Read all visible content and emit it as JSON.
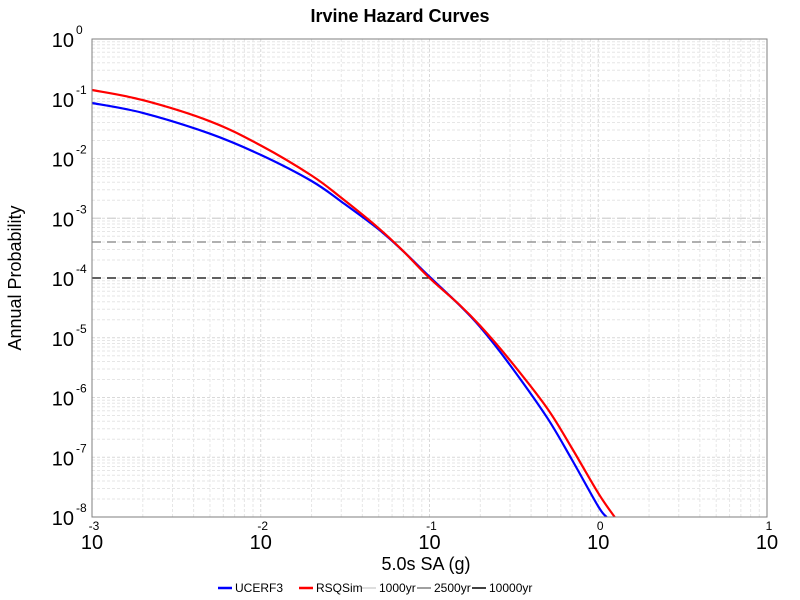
{
  "chart_data": {
    "type": "line",
    "title": "Irvine Hazard Curves",
    "xlabel": "5.0s SA (g)",
    "ylabel": "Annual Probability",
    "x_scale": "log",
    "y_scale": "log",
    "xlim": [
      0.001,
      10
    ],
    "ylim": [
      1e-08,
      1
    ],
    "grid": true,
    "legend_position": "bottom",
    "x_ticks": [
      {
        "base": "10",
        "exp": "-3"
      },
      {
        "base": "10",
        "exp": "-2"
      },
      {
        "base": "10",
        "exp": "-1"
      },
      {
        "base": "10",
        "exp": "0"
      },
      {
        "base": "10",
        "exp": "1"
      }
    ],
    "y_ticks": [
      {
        "base": "10",
        "exp": "0"
      },
      {
        "base": "10",
        "exp": "-1"
      },
      {
        "base": "10",
        "exp": "-2"
      },
      {
        "base": "10",
        "exp": "-3"
      },
      {
        "base": "10",
        "exp": "-4"
      },
      {
        "base": "10",
        "exp": "-5"
      },
      {
        "base": "10",
        "exp": "-6"
      },
      {
        "base": "10",
        "exp": "-7"
      },
      {
        "base": "10",
        "exp": "-8"
      }
    ],
    "series": [
      {
        "name": "UCERF3",
        "color": "#0000ff",
        "x": [
          0.001,
          0.002,
          0.005,
          0.01,
          0.02,
          0.03,
          0.05,
          0.07,
          0.1,
          0.15,
          0.2,
          0.3,
          0.5,
          0.7,
          1.0,
          1.12
        ],
        "y": [
          0.085,
          0.058,
          0.026,
          0.0115,
          0.0042,
          0.0019,
          0.00065,
          0.00028,
          0.000105,
          3.55e-05,
          1.5e-05,
          3.5e-06,
          4.5e-07,
          9e-08,
          1.5e-08,
          1e-08
        ]
      },
      {
        "name": "RSQSim",
        "color": "#ff0000",
        "x": [
          0.001,
          0.002,
          0.005,
          0.01,
          0.02,
          0.03,
          0.05,
          0.07,
          0.1,
          0.15,
          0.2,
          0.3,
          0.5,
          0.7,
          1.0,
          1.25
        ],
        "y": [
          0.14,
          0.095,
          0.042,
          0.0165,
          0.0052,
          0.0022,
          0.00068,
          0.00028,
          0.0001,
          3.6e-05,
          1.58e-05,
          4.2e-06,
          6.5e-07,
          1.4e-07,
          2.5e-08,
          1e-08
        ]
      }
    ],
    "reference_lines": [
      {
        "name": "1000yr",
        "y": 0.001,
        "color": "#d3d3d3"
      },
      {
        "name": "2500yr",
        "y": 0.0004,
        "color": "#808080"
      },
      {
        "name": "10000yr",
        "y": 0.0001,
        "color": "#000000"
      }
    ]
  }
}
